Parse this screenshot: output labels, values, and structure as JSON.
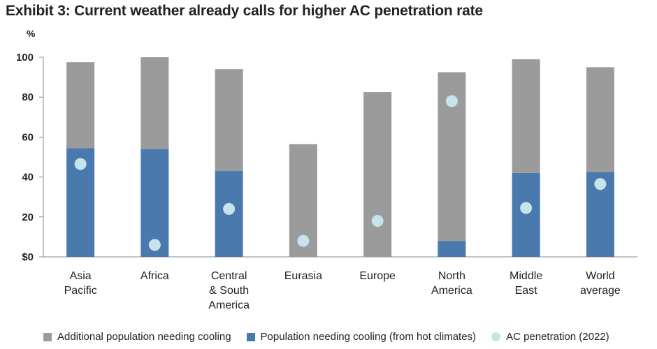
{
  "title": "Exhibit 3: Current weather already calls for higher AC penetration rate",
  "legend": {
    "additional_label": "Additional population needing cooling",
    "hot_label": "Population needing cooling (from hot climates)",
    "ac_label": "AC penetration (2022)"
  },
  "colors": {
    "additional": "#9b9b9b",
    "hot": "#4a7aad",
    "ac": "#c5e4ec",
    "axis": "#888888"
  },
  "chart_data": {
    "type": "bar",
    "stacked": true,
    "title": "Exhibit 3: Current weather already calls for higher AC penetration rate",
    "ylabel": "%",
    "ylim": [
      0,
      100
    ],
    "yticks": [
      0,
      20,
      40,
      60,
      80,
      100
    ],
    "ytick_labels": [
      "$0",
      "20",
      "40",
      "60",
      "80",
      "100"
    ],
    "categories": [
      [
        "Asia",
        "Pacific"
      ],
      [
        "Africa"
      ],
      [
        "Central",
        "& South",
        "America"
      ],
      [
        "Eurasia"
      ],
      [
        "Europe"
      ],
      [
        "North",
        "America"
      ],
      [
        "Middle",
        "East"
      ],
      [
        "World",
        "average"
      ]
    ],
    "series": [
      {
        "name": "Population needing cooling (from hot climates)",
        "kind": "bar",
        "values": [
          54.5,
          54,
          43,
          0,
          0,
          8,
          42,
          42.5
        ]
      },
      {
        "name": "Additional population needing cooling",
        "kind": "bar",
        "values": [
          43,
          46,
          51,
          56.5,
          82.5,
          84.5,
          57,
          52.5
        ]
      },
      {
        "name": "AC penetration (2022)",
        "kind": "scatter",
        "values": [
          46.5,
          6,
          24,
          8,
          18,
          78,
          24.5,
          36.5
        ]
      }
    ],
    "grid": false,
    "legend_position": "bottom"
  }
}
